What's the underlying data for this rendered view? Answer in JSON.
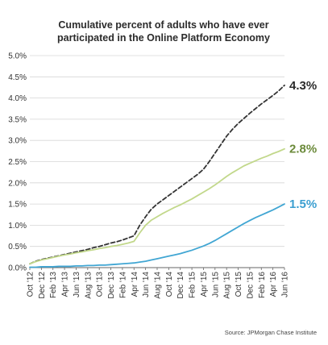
{
  "chart_data": {
    "type": "line",
    "title_lines": [
      "Cumulative percent of adults who have ever",
      "participated in the Online Platform Economy"
    ],
    "xlabel": "",
    "ylabel": "",
    "x": [
      "Oct '12",
      "Nov '12",
      "Dec '12",
      "Jan '13",
      "Feb '13",
      "Mar '13",
      "Apr '13",
      "May '13",
      "Jun '13",
      "Jul '13",
      "Aug '13",
      "Sep '13",
      "Oct '13",
      "Nov '13",
      "Dec '13",
      "Jan '14",
      "Feb '14",
      "Mar '14",
      "Apr '14",
      "May '14",
      "Jun '14",
      "Jul '14",
      "Aug '14",
      "Sep '14",
      "Oct '14",
      "Nov '14",
      "Dec '14",
      "Jan '15",
      "Feb '15",
      "Mar '15",
      "Apr '15",
      "May '15",
      "Jun '15",
      "Jul '15",
      "Aug '15",
      "Sep '15",
      "Oct '15",
      "Nov '15",
      "Dec '15",
      "Jan '16",
      "Feb '16",
      "Mar '16",
      "Apr '16",
      "May '16",
      "Jun '16"
    ],
    "x_tick_labels": [
      "Oct '12",
      "Dec '12",
      "Feb '13",
      "Apr '13",
      "Jun '13",
      "Aug '13",
      "Oct '13",
      "Dec '13",
      "Feb '14",
      "Apr '14",
      "Jun '14",
      "Aug '14",
      "Oct '14",
      "Dec '14",
      "Feb '15",
      "Apr '15",
      "Jun '15",
      "Aug '15",
      "Oct '15",
      "Dec '15",
      "Feb '16",
      "Apr '16",
      "Jun '16"
    ],
    "y_tick_labels": [
      "0.0%",
      "0.5%",
      "1.0%",
      "1.5%",
      "2.0%",
      "2.5%",
      "3.0%",
      "3.5%",
      "4.0%",
      "4.5%",
      "5.0%"
    ],
    "ylim": [
      0,
      5.0
    ],
    "y_unit": "%",
    "grid": "horizontal",
    "series": [
      {
        "color": "#333333",
        "dash": true,
        "end_label": "4.3%",
        "values": [
          0.09,
          0.15,
          0.19,
          0.22,
          0.25,
          0.28,
          0.31,
          0.34,
          0.37,
          0.4,
          0.43,
          0.47,
          0.5,
          0.54,
          0.58,
          0.61,
          0.65,
          0.7,
          0.75,
          1.0,
          1.2,
          1.38,
          1.5,
          1.6,
          1.7,
          1.8,
          1.9,
          2.0,
          2.1,
          2.2,
          2.32,
          2.5,
          2.7,
          2.9,
          3.1,
          3.26,
          3.4,
          3.52,
          3.64,
          3.75,
          3.86,
          3.96,
          4.06,
          4.17,
          4.3
        ]
      },
      {
        "color": "#c2d88b",
        "dash": false,
        "end_label": "2.8%",
        "values": [
          0.09,
          0.14,
          0.18,
          0.21,
          0.24,
          0.27,
          0.3,
          0.32,
          0.35,
          0.37,
          0.4,
          0.42,
          0.45,
          0.47,
          0.5,
          0.52,
          0.55,
          0.58,
          0.62,
          0.82,
          1.0,
          1.12,
          1.2,
          1.28,
          1.35,
          1.42,
          1.48,
          1.55,
          1.62,
          1.7,
          1.78,
          1.86,
          1.95,
          2.05,
          2.15,
          2.24,
          2.32,
          2.4,
          2.46,
          2.52,
          2.58,
          2.63,
          2.69,
          2.74,
          2.8
        ]
      },
      {
        "color": "#41a6d3",
        "dash": false,
        "end_label": "1.5%",
        "values": [
          0.01,
          0.01,
          0.02,
          0.02,
          0.02,
          0.03,
          0.03,
          0.03,
          0.04,
          0.04,
          0.05,
          0.05,
          0.06,
          0.06,
          0.07,
          0.08,
          0.09,
          0.1,
          0.11,
          0.13,
          0.15,
          0.18,
          0.21,
          0.24,
          0.27,
          0.3,
          0.33,
          0.37,
          0.41,
          0.46,
          0.51,
          0.57,
          0.64,
          0.72,
          0.8,
          0.88,
          0.96,
          1.04,
          1.11,
          1.18,
          1.24,
          1.3,
          1.36,
          1.43,
          1.5
        ]
      }
    ],
    "source": "Source: JPMorgan Chase Institute"
  }
}
